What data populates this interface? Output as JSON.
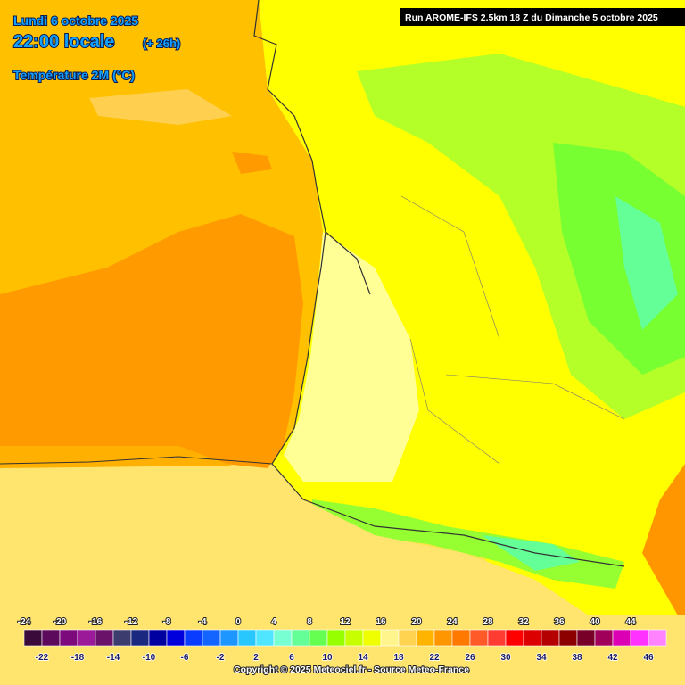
{
  "header": {
    "date": "Lundi 6 octobre 2025",
    "time": "22:00 locale",
    "offset": "(+ 26h)",
    "variable": "Température 2M (°C)"
  },
  "run_info": "Run AROME-IFS 2.5km 18 Z du Dimanche 5 octobre 2025",
  "legend": {
    "values": [
      -24,
      -22,
      -20,
      -18,
      -16,
      -14,
      -12,
      -10,
      -8,
      -6,
      -4,
      -2,
      0,
      2,
      4,
      6,
      8,
      10,
      12,
      14,
      16,
      18,
      20,
      22,
      24,
      26,
      28,
      30,
      32,
      34,
      36,
      38,
      40,
      42,
      44,
      46
    ],
    "colors": [
      "#3a0a3a",
      "#5c0a5c",
      "#7d0a7d",
      "#9a1a9a",
      "#6a126a",
      "#3c3c6e",
      "#1a2880",
      "#0000a0",
      "#0000dd",
      "#0a3cff",
      "#1464ff",
      "#1e96ff",
      "#28c8ff",
      "#50e6ff",
      "#78ffd2",
      "#64ff96",
      "#64ff50",
      "#96ff00",
      "#c8ff00",
      "#f0ff00",
      "#fff58c",
      "#ffd250",
      "#ffb400",
      "#ff9600",
      "#ff7800",
      "#ff5a28",
      "#ff3c32",
      "#ff0000",
      "#dc0000",
      "#b40000",
      "#8c0000",
      "#780028",
      "#a0005a",
      "#dc00b4",
      "#ff32ff",
      "#ff82ff"
    ]
  },
  "copyright": "Copyright © 2025 Meteociel.fr - Source Meteo-France"
}
